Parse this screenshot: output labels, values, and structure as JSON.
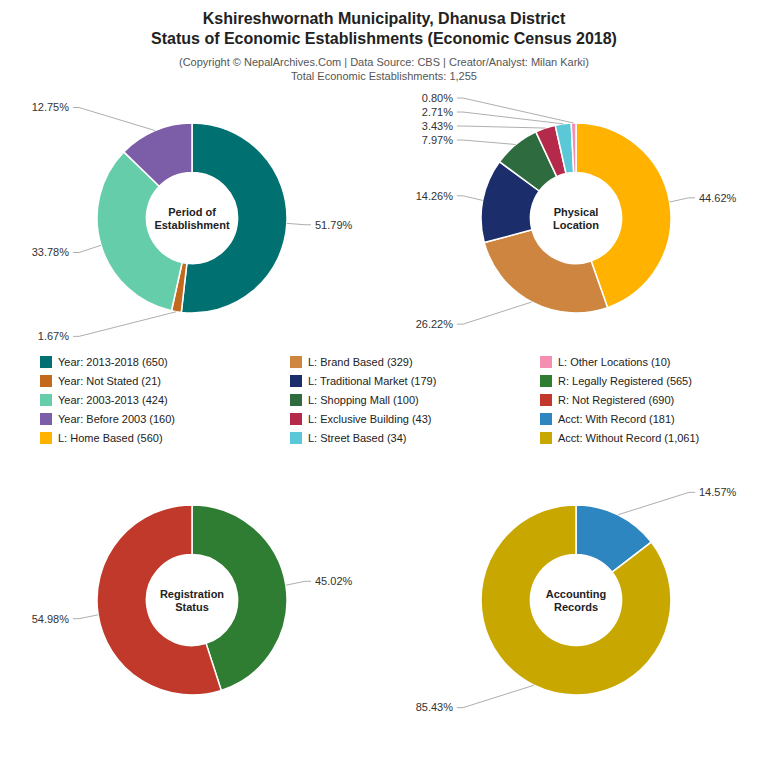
{
  "title": "Kshireshwornath Municipality, Dhanusa District\nStatus of Economic Establishments (Economic Census 2018)",
  "subtitle": "(Copyright © NepalArchives.Com | Data Source: CBS | Creator/Analyst: Milan Karki)\nTotal Economic Establishments: 1,255",
  "chart_data": [
    {
      "type": "pie",
      "title": "Period of\nEstablishment",
      "categories": [
        "Year: 2013-2018 (650)",
        "Year: Not Stated (21)",
        "Year: 2003-2013 (424)",
        "Year: Before 2003 (160)"
      ],
      "values": [
        51.79,
        1.67,
        33.78,
        12.75
      ],
      "value_labels": [
        "51.79%",
        "1.67%",
        "33.78%",
        "12.75%"
      ],
      "colors": [
        "#007070",
        "#C2691E",
        "#66CDAA",
        "#7B5EA7"
      ],
      "data_labels": true
    },
    {
      "type": "pie",
      "title": "Physical\nLocation",
      "categories": [
        "L: Home Based (560)",
        "L: Brand Based (329)",
        "L: Traditional Market (179)",
        "L: Shopping Mall (100)",
        "L: Exclusive Building (43)",
        "L: Street Based (34)",
        "L: Other Locations (10)"
      ],
      "values": [
        44.62,
        26.22,
        14.26,
        7.97,
        3.43,
        2.71,
        0.8
      ],
      "value_labels": [
        "44.62%",
        "26.22%",
        "14.26%",
        "7.97%",
        "3.43%",
        "2.71%",
        "0.80%"
      ],
      "colors": [
        "#FFB300",
        "#CD853F",
        "#1C2D6B",
        "#2E6B3E",
        "#B5294A",
        "#5BC8D8",
        "#F48FB1"
      ],
      "data_labels": true
    },
    {
      "type": "pie",
      "title": "Registration\nStatus",
      "categories": [
        "R: Legally Registered (565)",
        "R: Not Registered (690)"
      ],
      "values": [
        45.02,
        54.98
      ],
      "value_labels": [
        "45.02%",
        "54.98%"
      ],
      "colors": [
        "#2E7D32",
        "#C0392B"
      ],
      "data_labels": true
    },
    {
      "type": "pie",
      "title": "Accounting\nRecords",
      "categories": [
        "Acct: With Record (181)",
        "Acct: Without Record (1,061)"
      ],
      "values": [
        14.57,
        85.43
      ],
      "value_labels": [
        "14.57%",
        "85.43%"
      ],
      "colors": [
        "#2E86C1",
        "#C8A800"
      ],
      "data_labels": true
    }
  ]
}
